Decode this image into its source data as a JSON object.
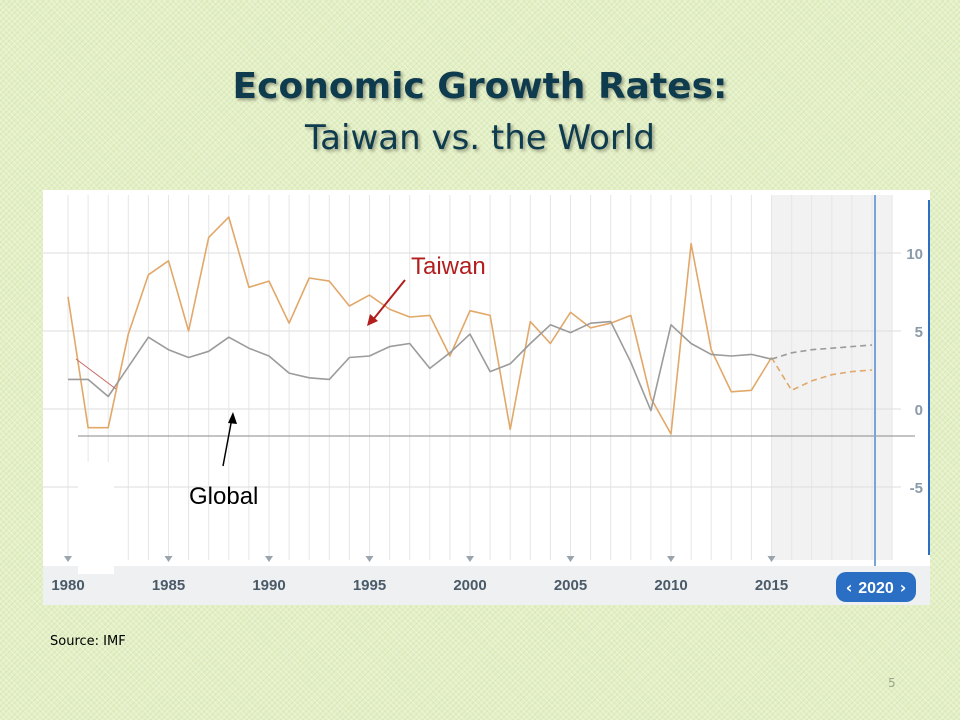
{
  "slide": {
    "title": "Economic Growth Rates:",
    "subtitle": "Taiwan vs. the World",
    "source": "Source: IMF",
    "page_number": "5"
  },
  "colors": {
    "taiwan": "#e1a86a",
    "global": "#9b9b9b",
    "taiwan_label": "#b21e1e",
    "global_label": "#000000",
    "forecast_bg": "#f2f2f2",
    "year_line": "#7ba3d8",
    "year_badge": "#2b6fc4"
  },
  "chart_data": {
    "type": "line",
    "x": [
      1980,
      1981,
      1982,
      1983,
      1984,
      1985,
      1986,
      1987,
      1988,
      1989,
      1990,
      1991,
      1992,
      1993,
      1994,
      1995,
      1996,
      1997,
      1998,
      1999,
      2000,
      2001,
      2002,
      2003,
      2004,
      2005,
      2006,
      2007,
      2008,
      2009,
      2010,
      2011,
      2012,
      2013,
      2014,
      2015,
      2016,
      2017,
      2018,
      2019,
      2020
    ],
    "series": [
      {
        "name": "Taiwan",
        "values": [
          7.2,
          -1.2,
          -1.2,
          4.8,
          8.6,
          9.5,
          5.0,
          11.0,
          12.3,
          7.8,
          8.2,
          5.5,
          8.4,
          8.2,
          6.6,
          7.3,
          6.4,
          5.9,
          6.0,
          3.4,
          6.3,
          6.0,
          -1.3,
          5.6,
          4.2,
          6.2,
          5.2,
          5.5,
          6.0,
          0.7,
          -1.6,
          10.6,
          3.8,
          1.1,
          1.2,
          3.3,
          1.2,
          1.8,
          2.2,
          2.4,
          2.5
        ],
        "forecast_from": 2016
      },
      {
        "name": "Global",
        "values": [
          1.9,
          1.9,
          0.8,
          2.7,
          4.6,
          3.8,
          3.3,
          3.7,
          4.6,
          3.9,
          3.4,
          2.3,
          2.0,
          1.9,
          3.3,
          3.4,
          4.0,
          4.2,
          2.6,
          3.6,
          4.8,
          2.4,
          2.9,
          4.2,
          5.4,
          4.9,
          5.5,
          5.6,
          3.0,
          -0.1,
          5.4,
          4.2,
          3.5,
          3.4,
          3.5,
          3.2,
          3.6,
          3.8,
          3.9,
          4.0,
          4.1
        ],
        "forecast_from": 2016
      }
    ],
    "ylim": [
      -11,
      13
    ],
    "y_ticks": [
      10,
      5,
      0,
      -5
    ],
    "x_ticks": [
      1980,
      1985,
      1990,
      1995,
      2000,
      2005,
      2010,
      2015
    ],
    "forecast_start": 2015,
    "selected_year": "2020",
    "grid": true,
    "annotations": [
      "Taiwan",
      "Global"
    ]
  }
}
